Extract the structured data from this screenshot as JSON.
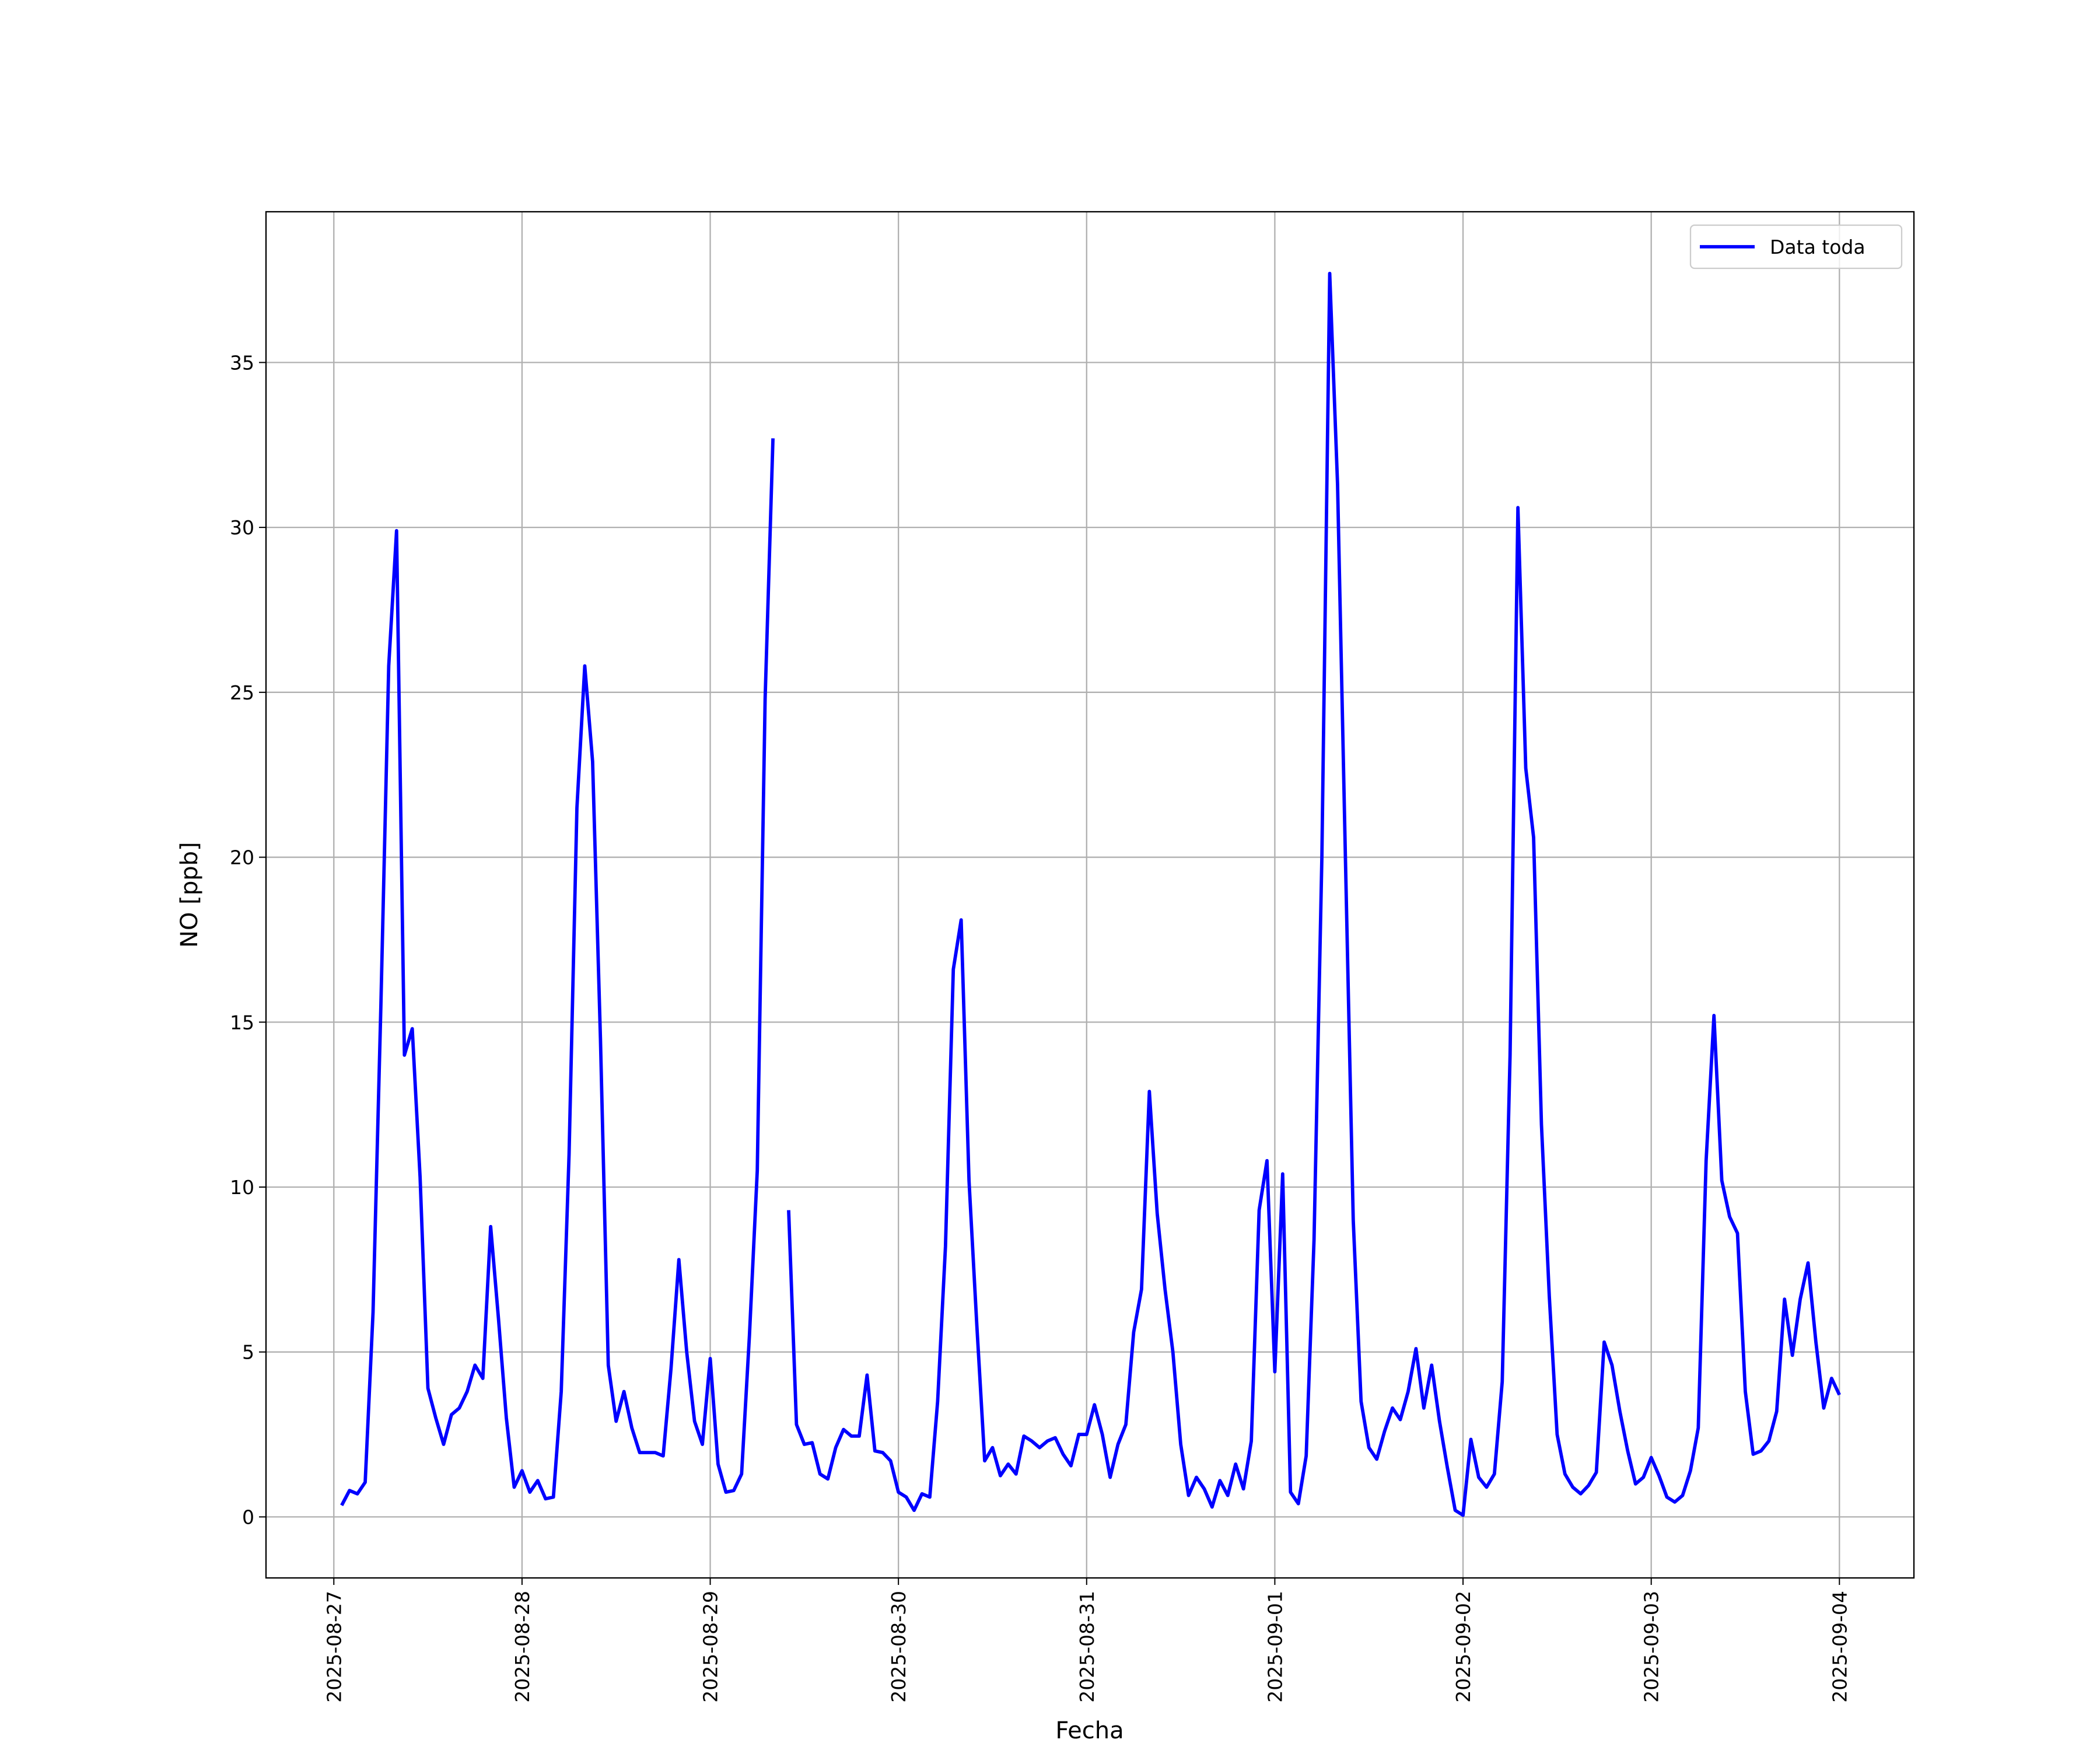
{
  "chart_data": {
    "type": "line",
    "xlabel": "Fecha",
    "ylabel": "NO [ppb]",
    "x": [
      "2025-08-27 01:00",
      "2025-08-27 02:00",
      "2025-08-27 03:00",
      "2025-08-27 04:00",
      "2025-08-27 05:00",
      "2025-08-27 06:00",
      "2025-08-27 07:00",
      "2025-08-27 08:00",
      "2025-08-27 09:00",
      "2025-08-27 10:00",
      "2025-08-27 11:00",
      "2025-08-27 12:00",
      "2025-08-27 13:00",
      "2025-08-27 14:00",
      "2025-08-27 15:00",
      "2025-08-27 16:00",
      "2025-08-27 17:00",
      "2025-08-27 18:00",
      "2025-08-27 19:00",
      "2025-08-27 20:00",
      "2025-08-27 21:00",
      "2025-08-27 22:00",
      "2025-08-27 23:00",
      "2025-08-28 00:00",
      "2025-08-28 01:00",
      "2025-08-28 02:00",
      "2025-08-28 03:00",
      "2025-08-28 04:00",
      "2025-08-28 05:00",
      "2025-08-28 06:00",
      "2025-08-28 07:00",
      "2025-08-28 08:00",
      "2025-08-28 09:00",
      "2025-08-28 10:00",
      "2025-08-28 11:00",
      "2025-08-28 12:00",
      "2025-08-28 13:00",
      "2025-08-28 14:00",
      "2025-08-28 15:00",
      "2025-08-28 16:00",
      "2025-08-28 17:00",
      "2025-08-28 18:00",
      "2025-08-28 19:00",
      "2025-08-28 20:00",
      "2025-08-28 21:00",
      "2025-08-28 22:00",
      "2025-08-28 23:00",
      "2025-08-29 00:00",
      "2025-08-29 01:00",
      "2025-08-29 02:00",
      "2025-08-29 03:00",
      "2025-08-29 04:00",
      "2025-08-29 05:00",
      "2025-08-29 06:00",
      "2025-08-29 07:00",
      "2025-08-29 08:00",
      "2025-08-29 09:00",
      "2025-08-29 10:00",
      "2025-08-29 11:00",
      "2025-08-29 12:00",
      "2025-08-29 13:00",
      "2025-08-29 14:00",
      "2025-08-29 15:00",
      "2025-08-29 16:00",
      "2025-08-29 17:00",
      "2025-08-29 18:00",
      "2025-08-29 19:00",
      "2025-08-29 20:00",
      "2025-08-29 21:00",
      "2025-08-29 22:00",
      "2025-08-29 23:00",
      "2025-08-30 00:00",
      "2025-08-30 01:00",
      "2025-08-30 02:00",
      "2025-08-30 03:00",
      "2025-08-30 04:00",
      "2025-08-30 05:00",
      "2025-08-30 06:00",
      "2025-08-30 07:00",
      "2025-08-30 08:00",
      "2025-08-30 09:00",
      "2025-08-30 10:00",
      "2025-08-30 11:00",
      "2025-08-30 12:00",
      "2025-08-30 13:00",
      "2025-08-30 14:00",
      "2025-08-30 15:00",
      "2025-08-30 16:00",
      "2025-08-30 17:00",
      "2025-08-30 18:00",
      "2025-08-30 19:00",
      "2025-08-30 20:00",
      "2025-08-30 21:00",
      "2025-08-30 22:00",
      "2025-08-30 23:00",
      "2025-08-31 00:00",
      "2025-08-31 01:00",
      "2025-08-31 02:00",
      "2025-08-31 03:00",
      "2025-08-31 04:00",
      "2025-08-31 05:00",
      "2025-08-31 06:00",
      "2025-08-31 07:00",
      "2025-08-31 08:00",
      "2025-08-31 09:00",
      "2025-08-31 10:00",
      "2025-08-31 11:00",
      "2025-08-31 12:00",
      "2025-08-31 13:00",
      "2025-08-31 14:00",
      "2025-08-31 15:00",
      "2025-08-31 16:00",
      "2025-08-31 17:00",
      "2025-08-31 18:00",
      "2025-08-31 19:00",
      "2025-08-31 20:00",
      "2025-08-31 21:00",
      "2025-08-31 22:00",
      "2025-08-31 23:00",
      "2025-09-01 00:00",
      "2025-09-01 01:00",
      "2025-09-01 02:00",
      "2025-09-01 03:00",
      "2025-09-01 04:00",
      "2025-09-01 05:00",
      "2025-09-01 06:00",
      "2025-09-01 07:00",
      "2025-09-01 08:00",
      "2025-09-01 09:00",
      "2025-09-01 10:00",
      "2025-09-01 11:00",
      "2025-09-01 12:00",
      "2025-09-01 13:00",
      "2025-09-01 14:00",
      "2025-09-01 15:00",
      "2025-09-01 16:00",
      "2025-09-01 17:00",
      "2025-09-01 18:00",
      "2025-09-01 19:00",
      "2025-09-01 20:00",
      "2025-09-01 21:00",
      "2025-09-01 22:00",
      "2025-09-01 23:00",
      "2025-09-02 00:00",
      "2025-09-02 01:00",
      "2025-09-02 02:00",
      "2025-09-02 03:00",
      "2025-09-02 04:00",
      "2025-09-02 05:00",
      "2025-09-02 06:00",
      "2025-09-02 07:00",
      "2025-09-02 08:00",
      "2025-09-02 09:00",
      "2025-09-02 10:00",
      "2025-09-02 11:00",
      "2025-09-02 12:00",
      "2025-09-02 13:00",
      "2025-09-02 14:00",
      "2025-09-02 15:00",
      "2025-09-02 16:00",
      "2025-09-02 17:00",
      "2025-09-02 18:00",
      "2025-09-02 19:00",
      "2025-09-02 20:00",
      "2025-09-02 21:00",
      "2025-09-02 22:00",
      "2025-09-02 23:00",
      "2025-09-03 00:00",
      "2025-09-03 01:00",
      "2025-09-03 02:00",
      "2025-09-03 03:00",
      "2025-09-03 04:00",
      "2025-09-03 05:00",
      "2025-09-03 06:00",
      "2025-09-03 07:00",
      "2025-09-03 08:00",
      "2025-09-03 09:00",
      "2025-09-03 10:00",
      "2025-09-03 11:00",
      "2025-09-03 12:00",
      "2025-09-03 13:00",
      "2025-09-03 14:00",
      "2025-09-03 15:00",
      "2025-09-03 16:00",
      "2025-09-03 17:00",
      "2025-09-03 18:00",
      "2025-09-03 19:00",
      "2025-09-03 20:00",
      "2025-09-03 21:00",
      "2025-09-03 22:00",
      "2025-09-03 23:00",
      "2025-09-04 00:00"
    ],
    "series": [
      {
        "name": "Data toda",
        "color": "#0000ff",
        "values": [
          0.35,
          0.8,
          0.7,
          1.05,
          6.2,
          15.5,
          25.8,
          29.9,
          14.0,
          14.8,
          10.3,
          3.9,
          3.0,
          2.2,
          3.1,
          3.3,
          3.8,
          4.6,
          4.2,
          8.8,
          6.0,
          3.0,
          0.9,
          1.4,
          0.75,
          1.1,
          0.55,
          0.6,
          3.8,
          11.0,
          21.5,
          25.8,
          22.9,
          14.5,
          4.6,
          2.9,
          3.8,
          2.7,
          1.95,
          1.95,
          1.95,
          1.85,
          4.5,
          7.8,
          5.0,
          2.9,
          2.2,
          4.8,
          1.6,
          0.75,
          0.8,
          1.3,
          5.5,
          10.5,
          24.8,
          32.7,
          null,
          9.3,
          2.8,
          2.2,
          2.25,
          1.3,
          1.15,
          2.1,
          2.65,
          2.45,
          2.45,
          4.3,
          2.0,
          1.95,
          1.7,
          0.75,
          0.6,
          0.2,
          0.7,
          0.6,
          3.5,
          8.2,
          16.6,
          18.1,
          10.2,
          5.8,
          1.7,
          2.1,
          1.25,
          1.6,
          1.3,
          2.45,
          2.3,
          2.1,
          2.3,
          2.4,
          1.9,
          1.55,
          2.5,
          2.5,
          3.4,
          2.5,
          1.2,
          2.2,
          2.8,
          5.6,
          6.9,
          12.9,
          9.2,
          6.9,
          5.0,
          2.2,
          0.65,
          1.2,
          0.85,
          0.3,
          1.1,
          0.65,
          1.6,
          0.85,
          2.3,
          9.3,
          10.8,
          4.4,
          10.4,
          0.75,
          0.4,
          1.85,
          8.4,
          20.0,
          37.7,
          31.3,
          20.0,
          9.0,
          3.5,
          2.1,
          1.75,
          2.6,
          3.3,
          2.95,
          3.8,
          5.1,
          3.3,
          4.6,
          2.9,
          1.5,
          0.2,
          0.05,
          2.35,
          1.2,
          0.9,
          1.3,
          4.1,
          14.0,
          30.6,
          22.7,
          20.6,
          11.9,
          6.7,
          2.5,
          1.3,
          0.9,
          0.7,
          0.95,
          1.35,
          5.3,
          4.6,
          3.2,
          2.0,
          1.0,
          1.2,
          1.8,
          1.25,
          0.6,
          0.45,
          0.65,
          1.4,
          2.7,
          10.8,
          15.2,
          10.2,
          9.1,
          8.6,
          3.8,
          1.9,
          2.0,
          2.3,
          3.2,
          6.6,
          4.9,
          6.6,
          7.7,
          5.3,
          3.3,
          4.2,
          3.7
        ]
      }
    ],
    "xlim": [
      "2025-08-26 15:21",
      "2025-09-04 09:30"
    ],
    "xticks": [
      "2025-08-27",
      "2025-08-28",
      "2025-08-29",
      "2025-08-30",
      "2025-08-31",
      "2025-09-01",
      "2025-09-02",
      "2025-09-03",
      "2025-09-04"
    ],
    "ylim": [
      -1.85,
      39.57
    ],
    "yticks": [
      0,
      5,
      10,
      15,
      20,
      25,
      30,
      35
    ],
    "grid": true,
    "legend": "upper right"
  }
}
